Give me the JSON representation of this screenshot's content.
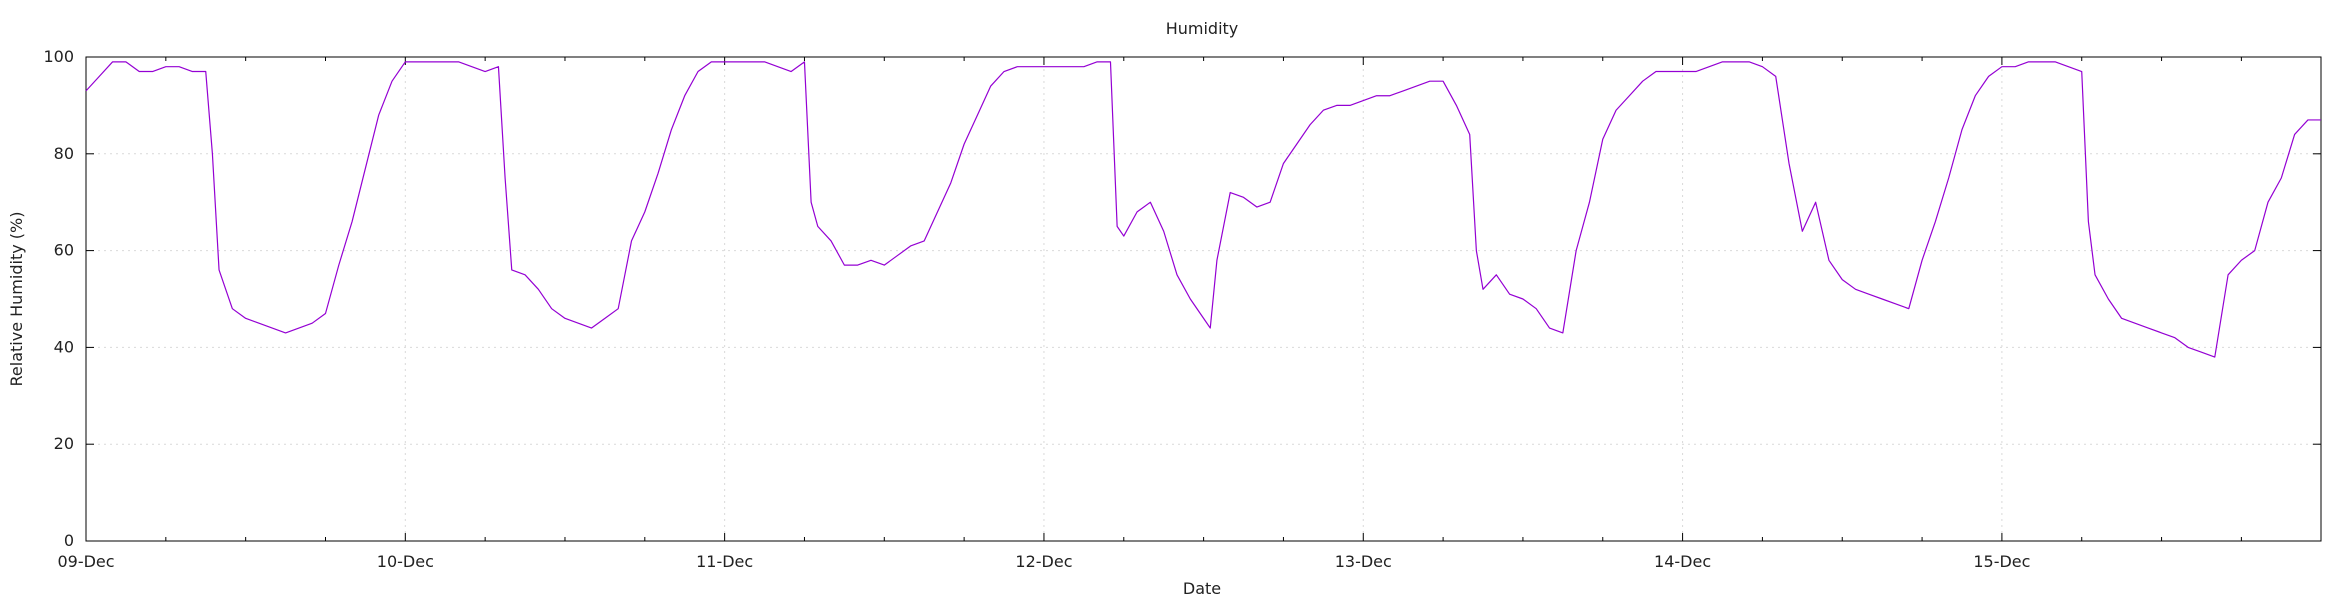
{
  "chart_data": {
    "type": "line",
    "title": "Humidity",
    "xlabel": "Date",
    "ylabel": "Relative Humidity (%)",
    "xlim": [
      "09-Dec",
      "15-Dec-23:59"
    ],
    "ylim": [
      0,
      100
    ],
    "yticks": [
      0,
      20,
      40,
      60,
      80,
      100
    ],
    "xticks": [
      "09-Dec",
      "10-Dec",
      "11-Dec",
      "12-Dec",
      "13-Dec",
      "14-Dec",
      "15-Dec"
    ],
    "grid": true,
    "series": [
      {
        "color": "#9400d3",
        "points": [
          [
            "09-Dec 00:00",
            93
          ],
          [
            "09-Dec 01:00",
            96
          ],
          [
            "09-Dec 02:00",
            99
          ],
          [
            "09-Dec 03:00",
            99
          ],
          [
            "09-Dec 04:00",
            97
          ],
          [
            "09-Dec 05:00",
            97
          ],
          [
            "09-Dec 06:00",
            98
          ],
          [
            "09-Dec 07:00",
            98
          ],
          [
            "09-Dec 08:00",
            97
          ],
          [
            "09-Dec 09:00",
            97
          ],
          [
            "09-Dec 09:30",
            80
          ],
          [
            "09-Dec 10:00",
            56
          ],
          [
            "09-Dec 11:00",
            48
          ],
          [
            "09-Dec 12:00",
            46
          ],
          [
            "09-Dec 13:00",
            45
          ],
          [
            "09-Dec 14:00",
            44
          ],
          [
            "09-Dec 15:00",
            43
          ],
          [
            "09-Dec 16:00",
            44
          ],
          [
            "09-Dec 17:00",
            45
          ],
          [
            "09-Dec 18:00",
            47
          ],
          [
            "09-Dec 19:00",
            57
          ],
          [
            "09-Dec 20:00",
            66
          ],
          [
            "09-Dec 21:00",
            77
          ],
          [
            "09-Dec 22:00",
            88
          ],
          [
            "09-Dec 23:00",
            95
          ],
          [
            "10-Dec 00:00",
            99
          ],
          [
            "10-Dec 01:00",
            99
          ],
          [
            "10-Dec 02:00",
            99
          ],
          [
            "10-Dec 03:00",
            99
          ],
          [
            "10-Dec 04:00",
            99
          ],
          [
            "10-Dec 05:00",
            98
          ],
          [
            "10-Dec 06:00",
            97
          ],
          [
            "10-Dec 07:00",
            98
          ],
          [
            "10-Dec 07:30",
            75
          ],
          [
            "10-Dec 08:00",
            56
          ],
          [
            "10-Dec 09:00",
            55
          ],
          [
            "10-Dec 10:00",
            52
          ],
          [
            "10-Dec 11:00",
            48
          ],
          [
            "10-Dec 12:00",
            46
          ],
          [
            "10-Dec 13:00",
            45
          ],
          [
            "10-Dec 14:00",
            44
          ],
          [
            "10-Dec 15:00",
            46
          ],
          [
            "10-Dec 16:00",
            48
          ],
          [
            "10-Dec 17:00",
            62
          ],
          [
            "10-Dec 18:00",
            68
          ],
          [
            "10-Dec 19:00",
            76
          ],
          [
            "10-Dec 20:00",
            85
          ],
          [
            "10-Dec 21:00",
            92
          ],
          [
            "10-Dec 22:00",
            97
          ],
          [
            "10-Dec 23:00",
            99
          ],
          [
            "11-Dec 00:00",
            99
          ],
          [
            "11-Dec 01:00",
            99
          ],
          [
            "11-Dec 02:00",
            99
          ],
          [
            "11-Dec 03:00",
            99
          ],
          [
            "11-Dec 04:00",
            98
          ],
          [
            "11-Dec 05:00",
            97
          ],
          [
            "11-Dec 06:00",
            99
          ],
          [
            "11-Dec 06:30",
            70
          ],
          [
            "11-Dec 07:00",
            65
          ],
          [
            "11-Dec 08:00",
            62
          ],
          [
            "11-Dec 09:00",
            57
          ],
          [
            "11-Dec 10:00",
            57
          ],
          [
            "11-Dec 11:00",
            58
          ],
          [
            "11-Dec 12:00",
            57
          ],
          [
            "11-Dec 13:00",
            59
          ],
          [
            "11-Dec 14:00",
            61
          ],
          [
            "11-Dec 15:00",
            62
          ],
          [
            "11-Dec 16:00",
            68
          ],
          [
            "11-Dec 17:00",
            74
          ],
          [
            "11-Dec 18:00",
            82
          ],
          [
            "11-Dec 19:00",
            88
          ],
          [
            "11-Dec 20:00",
            94
          ],
          [
            "11-Dec 21:00",
            97
          ],
          [
            "11-Dec 22:00",
            98
          ],
          [
            "11-Dec 23:00",
            98
          ],
          [
            "12-Dec 00:00",
            98
          ],
          [
            "12-Dec 01:00",
            98
          ],
          [
            "12-Dec 02:00",
            98
          ],
          [
            "12-Dec 03:00",
            98
          ],
          [
            "12-Dec 04:00",
            99
          ],
          [
            "12-Dec 05:00",
            99
          ],
          [
            "12-Dec 05:30",
            65
          ],
          [
            "12-Dec 06:00",
            63
          ],
          [
            "12-Dec 07:00",
            68
          ],
          [
            "12-Dec 08:00",
            70
          ],
          [
            "12-Dec 09:00",
            64
          ],
          [
            "12-Dec 10:00",
            55
          ],
          [
            "12-Dec 11:00",
            50
          ],
          [
            "12-Dec 12:00",
            46
          ],
          [
            "12-Dec 12:30",
            44
          ],
          [
            "12-Dec 13:00",
            58
          ],
          [
            "12-Dec 14:00",
            72
          ],
          [
            "12-Dec 15:00",
            71
          ],
          [
            "12-Dec 16:00",
            69
          ],
          [
            "12-Dec 17:00",
            70
          ],
          [
            "12-Dec 18:00",
            78
          ],
          [
            "12-Dec 19:00",
            82
          ],
          [
            "12-Dec 20:00",
            86
          ],
          [
            "12-Dec 21:00",
            89
          ],
          [
            "12-Dec 22:00",
            90
          ],
          [
            "12-Dec 23:00",
            90
          ],
          [
            "13-Dec 00:00",
            91
          ],
          [
            "13-Dec 01:00",
            92
          ],
          [
            "13-Dec 02:00",
            92
          ],
          [
            "13-Dec 03:00",
            93
          ],
          [
            "13-Dec 04:00",
            94
          ],
          [
            "13-Dec 05:00",
            95
          ],
          [
            "13-Dec 06:00",
            95
          ],
          [
            "13-Dec 07:00",
            90
          ],
          [
            "13-Dec 08:00",
            84
          ],
          [
            "13-Dec 08:30",
            60
          ],
          [
            "13-Dec 09:00",
            52
          ],
          [
            "13-Dec 10:00",
            55
          ],
          [
            "13-Dec 11:00",
            51
          ],
          [
            "13-Dec 12:00",
            50
          ],
          [
            "13-Dec 13:00",
            48
          ],
          [
            "13-Dec 14:00",
            44
          ],
          [
            "13-Dec 15:00",
            43
          ],
          [
            "13-Dec 16:00",
            60
          ],
          [
            "13-Dec 17:00",
            70
          ],
          [
            "13-Dec 18:00",
            83
          ],
          [
            "13-Dec 19:00",
            89
          ],
          [
            "13-Dec 20:00",
            92
          ],
          [
            "13-Dec 21:00",
            95
          ],
          [
            "13-Dec 22:00",
            97
          ],
          [
            "13-Dec 23:00",
            97
          ],
          [
            "14-Dec 00:00",
            97
          ],
          [
            "14-Dec 01:00",
            97
          ],
          [
            "14-Dec 02:00",
            98
          ],
          [
            "14-Dec 03:00",
            99
          ],
          [
            "14-Dec 04:00",
            99
          ],
          [
            "14-Dec 05:00",
            99
          ],
          [
            "14-Dec 06:00",
            98
          ],
          [
            "14-Dec 07:00",
            96
          ],
          [
            "14-Dec 08:00",
            78
          ],
          [
            "14-Dec 09:00",
            64
          ],
          [
            "14-Dec 10:00",
            70
          ],
          [
            "14-Dec 11:00",
            58
          ],
          [
            "14-Dec 12:00",
            54
          ],
          [
            "14-Dec 13:00",
            52
          ],
          [
            "14-Dec 14:00",
            51
          ],
          [
            "14-Dec 15:00",
            50
          ],
          [
            "14-Dec 16:00",
            49
          ],
          [
            "14-Dec 17:00",
            48
          ],
          [
            "14-Dec 18:00",
            58
          ],
          [
            "14-Dec 19:00",
            66
          ],
          [
            "14-Dec 20:00",
            75
          ],
          [
            "14-Dec 21:00",
            85
          ],
          [
            "14-Dec 22:00",
            92
          ],
          [
            "14-Dec 23:00",
            96
          ],
          [
            "15-Dec 00:00",
            98
          ],
          [
            "15-Dec 01:00",
            98
          ],
          [
            "15-Dec 02:00",
            99
          ],
          [
            "15-Dec 03:00",
            99
          ],
          [
            "15-Dec 04:00",
            99
          ],
          [
            "15-Dec 05:00",
            98
          ],
          [
            "15-Dec 06:00",
            97
          ],
          [
            "15-Dec 06:30",
            66
          ],
          [
            "15-Dec 07:00",
            55
          ],
          [
            "15-Dec 08:00",
            50
          ],
          [
            "15-Dec 09:00",
            46
          ],
          [
            "15-Dec 10:00",
            45
          ],
          [
            "15-Dec 11:00",
            44
          ],
          [
            "15-Dec 12:00",
            43
          ],
          [
            "15-Dec 13:00",
            42
          ],
          [
            "15-Dec 14:00",
            40
          ],
          [
            "15-Dec 15:00",
            39
          ],
          [
            "15-Dec 16:00",
            38
          ],
          [
            "15-Dec 17:00",
            55
          ],
          [
            "15-Dec 18:00",
            58
          ],
          [
            "15-Dec 19:00",
            60
          ],
          [
            "15-Dec 20:00",
            70
          ],
          [
            "15-Dec 21:00",
            75
          ],
          [
            "15-Dec 22:00",
            84
          ],
          [
            "15-Dec 23:00",
            87
          ],
          [
            "15-Dec 23:59",
            87
          ]
        ]
      }
    ]
  }
}
